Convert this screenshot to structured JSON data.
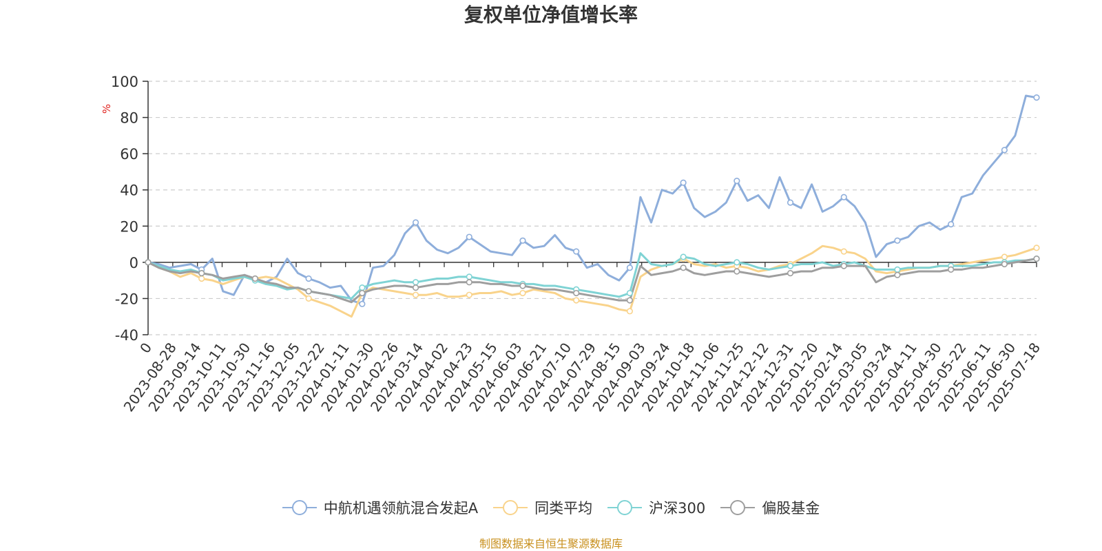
{
  "chart_data": {
    "type": "line",
    "title": "复权单位净值增长率",
    "ylabel": "%",
    "ylim": [
      -40,
      100
    ],
    "y_ticks": [
      -40,
      -20,
      0,
      20,
      40,
      60,
      80,
      100
    ],
    "x_tick_labels": [
      "0",
      "2023-08-28",
      "2023-09-14",
      "2023-10-11",
      "2023-10-30",
      "2023-11-16",
      "2023-12-05",
      "2023-12-22",
      "2024-01-11",
      "2024-01-30",
      "2024-02-26",
      "2024-03-14",
      "2024-04-02",
      "2024-04-23",
      "2024-05-15",
      "2024-06-03",
      "2024-06-21",
      "2024-07-10",
      "2024-07-29",
      "2024-08-15",
      "2024-09-03",
      "2024-09-24",
      "2024-10-18",
      "2024-11-06",
      "2024-11-25",
      "2024-12-12",
      "2024-12-31",
      "2025-01-20",
      "2025-02-14",
      "2025-03-05",
      "2025-03-24",
      "2025-04-11",
      "2025-04-30",
      "2025-05-22",
      "2025-06-11",
      "2025-06-30",
      "2025-07-18"
    ],
    "grid": true,
    "legend_position": "bottom",
    "series": [
      {
        "name": "中航机遇领航混合发起A",
        "color": "#8eaedb",
        "values": [
          0,
          -1,
          -3,
          -2,
          -1,
          -4,
          2,
          -16,
          -18,
          -7,
          -9,
          -11,
          -8,
          2,
          -6,
          -9,
          -11,
          -14,
          -13,
          -21,
          -23,
          -3,
          -2,
          4,
          16,
          22,
          12,
          7,
          5,
          8,
          14,
          10,
          6,
          5,
          4,
          12,
          8,
          9,
          15,
          8,
          6,
          -3,
          -1,
          -7,
          -10,
          -3,
          36,
          22,
          40,
          38,
          44,
          30,
          25,
          28,
          33,
          45,
          34,
          37,
          30,
          47,
          33,
          30,
          43,
          28,
          31,
          36,
          31,
          22,
          3,
          10,
          12,
          14,
          20,
          22,
          18,
          21,
          36,
          38,
          48,
          55,
          62,
          70,
          92,
          91
        ]
      },
      {
        "name": "同类平均",
        "color": "#f9d38b",
        "values": [
          0,
          -3,
          -5,
          -8,
          -6,
          -9,
          -10,
          -12,
          -10,
          -8,
          -9,
          -8,
          -9,
          -12,
          -15,
          -20,
          -22,
          -24,
          -27,
          -30,
          -17,
          -14,
          -15,
          -16,
          -17,
          -18,
          -18,
          -17,
          -19,
          -19,
          -18,
          -17,
          -17,
          -16,
          -18,
          -17,
          -15,
          -16,
          -17,
          -20,
          -21,
          -22,
          -23,
          -24,
          -26,
          -27,
          -8,
          -4,
          -2,
          -1,
          2,
          -1,
          -2,
          -1,
          -3,
          -2,
          -3,
          -5,
          -4,
          -2,
          -1,
          2,
          5,
          9,
          8,
          6,
          5,
          2,
          -5,
          -6,
          -5,
          -4,
          -3,
          -3,
          -2,
          -2,
          -1,
          0,
          1,
          2,
          3,
          4,
          6,
          8
        ]
      },
      {
        "name": "沪深300",
        "color": "#7fd3d4",
        "values": [
          0,
          -2,
          -4,
          -5,
          -4,
          -6,
          -7,
          -10,
          -9,
          -8,
          -10,
          -12,
          -13,
          -15,
          -14,
          -16,
          -17,
          -18,
          -19,
          -20,
          -14,
          -12,
          -11,
          -10,
          -11,
          -11,
          -10,
          -9,
          -9,
          -8,
          -8,
          -9,
          -10,
          -11,
          -11,
          -12,
          -12,
          -13,
          -13,
          -14,
          -15,
          -16,
          -17,
          -18,
          -19,
          -17,
          5,
          -1,
          -2,
          -1,
          3,
          2,
          -1,
          -2,
          -1,
          0,
          -1,
          -3,
          -4,
          -3,
          -2,
          -1,
          -1,
          0,
          -2,
          -1,
          0,
          -2,
          -4,
          -4,
          -4,
          -3,
          -3,
          -3,
          -2,
          -2,
          -2,
          -2,
          -1,
          0,
          0,
          1,
          1,
          2
        ]
      },
      {
        "name": "偏股基金",
        "color": "#9e9e9e",
        "values": [
          0,
          -3,
          -5,
          -6,
          -5,
          -6,
          -7,
          -9,
          -8,
          -7,
          -9,
          -11,
          -12,
          -14,
          -14,
          -16,
          -17,
          -18,
          -20,
          -22,
          -17,
          -15,
          -14,
          -13,
          -13,
          -14,
          -13,
          -12,
          -12,
          -11,
          -11,
          -11,
          -12,
          -12,
          -13,
          -13,
          -14,
          -15,
          -15,
          -16,
          -17,
          -18,
          -19,
          -20,
          -21,
          -21,
          -2,
          -7,
          -6,
          -5,
          -3,
          -6,
          -7,
          -6,
          -5,
          -5,
          -6,
          -7,
          -8,
          -7,
          -6,
          -5,
          -5,
          -3,
          -3,
          -2,
          -2,
          -2,
          -11,
          -8,
          -7,
          -6,
          -5,
          -5,
          -5,
          -4,
          -4,
          -3,
          -3,
          -2,
          -1,
          0,
          1,
          2
        ]
      }
    ]
  },
  "legend": {
    "items": [
      "中航机遇领航混合发起A",
      "同类平均",
      "沪深300",
      "偏股基金"
    ]
  },
  "source_note": "制图数据来自恒生聚源数据库"
}
